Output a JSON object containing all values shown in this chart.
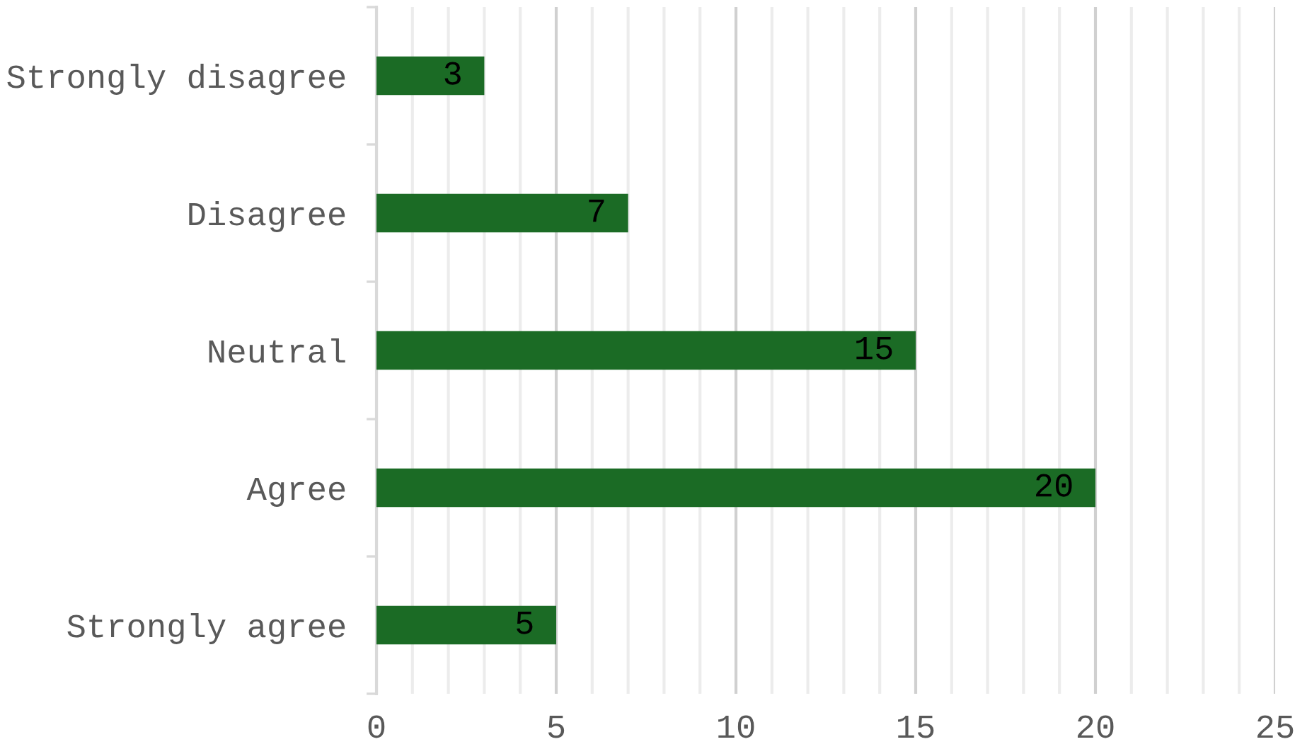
{
  "chart_data": {
    "type": "bar",
    "orientation": "horizontal",
    "categories": [
      "Strongly disagree",
      "Disagree",
      "Neutral",
      "Agree",
      "Strongly agree"
    ],
    "values": [
      3,
      7,
      15,
      20,
      5
    ],
    "color": "#1b6b25",
    "xlim": [
      0,
      25
    ],
    "xticks": [
      0,
      {
        "value": 1,
        "label": null
      },
      {
        "value": 2,
        "label": null
      },
      {
        "value": 3,
        "label": null
      },
      {
        "value": 4,
        "label": null
      },
      5,
      {
        "value": 6,
        "label": null
      },
      {
        "value": 7,
        "label": null
      },
      {
        "value": 8,
        "label": null
      },
      {
        "value": 9,
        "label": null
      },
      10,
      {
        "value": 11,
        "label": null
      },
      {
        "value": 12,
        "label": null
      },
      {
        "value": 13,
        "label": null
      },
      {
        "value": 14,
        "label": null
      },
      15,
      {
        "value": 16,
        "label": null
      },
      {
        "value": 17,
        "label": null
      },
      {
        "value": 18,
        "label": null
      },
      {
        "value": 19,
        "label": null
      },
      20,
      {
        "value": 21,
        "label": null
      },
      {
        "value": 22,
        "label": null
      },
      {
        "value": 23,
        "label": null
      },
      {
        "value": 24,
        "label": null
      },
      25
    ],
    "grid": "x",
    "data_labels": true
  }
}
